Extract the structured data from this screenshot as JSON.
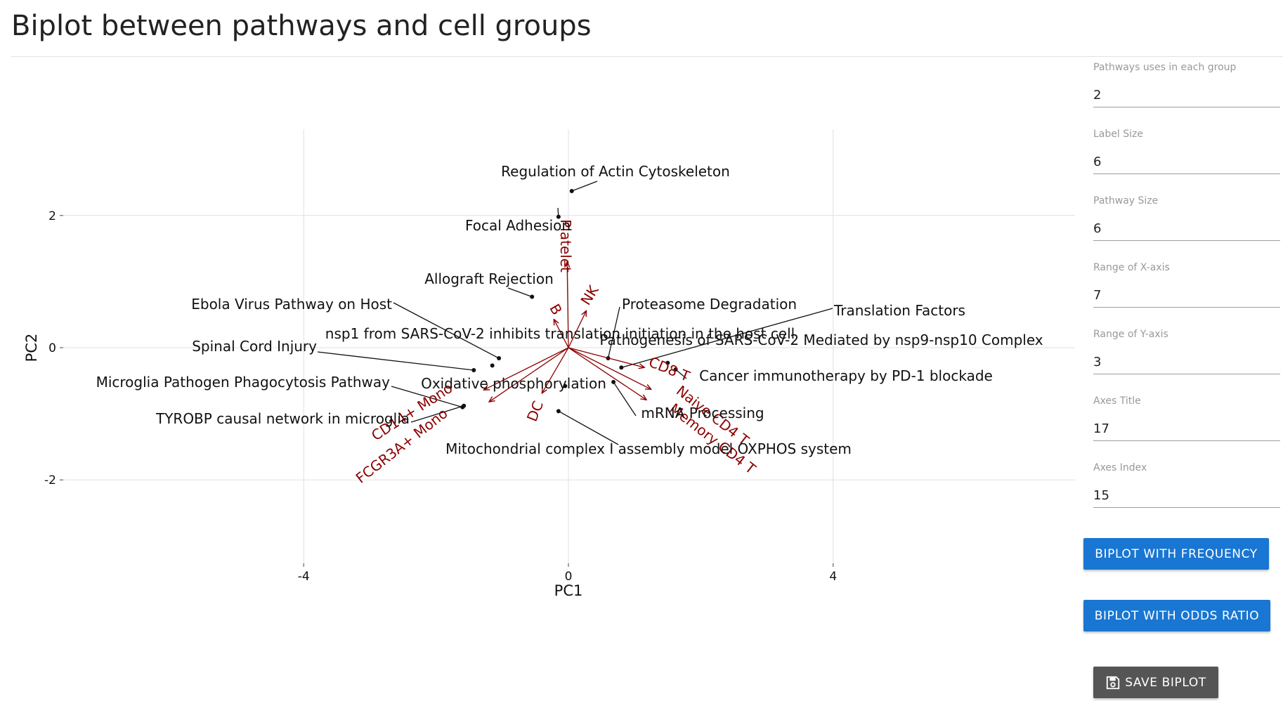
{
  "page": {
    "title": "Biplot between pathways and cell groups"
  },
  "sidebar": {
    "fields": [
      {
        "label": "Pathways uses in each group",
        "value": "2"
      },
      {
        "label": "Label Size",
        "value": "6"
      },
      {
        "label": "Pathway Size",
        "value": "6"
      },
      {
        "label": "Range of X-axis",
        "value": "7"
      },
      {
        "label": "Range of Y-axis",
        "value": "3"
      },
      {
        "label": "Axes Title",
        "value": "17"
      },
      {
        "label": "Axes Index",
        "value": "15"
      }
    ],
    "buttons": {
      "frequency": "BIPLOT WITH FREQUENCY",
      "odds_ratio": "BIPLOT WITH ODDS RATIO",
      "save": "SAVE BIPLOT"
    },
    "save_icon": "floppy-disk-icon"
  },
  "colors": {
    "arrow": "#8b0000",
    "primary_button": "#1976d2",
    "save_button": "#555555"
  },
  "chart_data": {
    "type": "scatter",
    "title": "",
    "xlabel": "PC1",
    "ylabel": "PC2",
    "xlim": [
      -7,
      7
    ],
    "ylim": [
      -3,
      3
    ],
    "xticks": [
      -4,
      0,
      4
    ],
    "yticks": [
      -2,
      0,
      2
    ],
    "grid": true,
    "points": [
      {
        "label": "Regulation of Actin Cytoskeleton",
        "x": 0.05,
        "y": 2.37
      },
      {
        "label": "Focal Adhesion",
        "x": -0.15,
        "y": 1.98
      },
      {
        "label": "Allograft Rejection",
        "x": -0.55,
        "y": 0.77
      },
      {
        "label": "Proteasome Degradation",
        "x": 0.6,
        "y": -0.16
      },
      {
        "label": "Translation Factors",
        "x": 0.8,
        "y": -0.3
      },
      {
        "label": "Ebola Virus Pathway on Host",
        "x": -1.05,
        "y": -0.16
      },
      {
        "label": "nsp1 from SARS-CoV-2 inhibits translation initiation in the host cell",
        "x": -1.15,
        "y": -0.27
      },
      {
        "label": "Pathogenesis of SARS-CoV-2 Mediated by nsp9-nsp10 Complex",
        "x": 1.5,
        "y": -0.23
      },
      {
        "label": "Spinal Cord Injury",
        "x": -1.43,
        "y": -0.34
      },
      {
        "label": "Cancer immunotherapy by PD-1 blockade",
        "x": 1.62,
        "y": -0.33
      },
      {
        "label": "Microglia Pathogen Phagocytosis Pathway",
        "x": -1.6,
        "y": -0.9
      },
      {
        "label": "Oxidative phosphorylation",
        "x": -0.05,
        "y": -0.58
      },
      {
        "label": "mRNA Processing",
        "x": 0.68,
        "y": -0.52
      },
      {
        "label": "TYROBP causal network in microglia",
        "x": -1.58,
        "y": -0.88
      },
      {
        "label": "Mitochondrial complex I assembly model OXPHOS system",
        "x": -0.15,
        "y": -0.96
      }
    ],
    "arrows": [
      {
        "label": "Platelet",
        "x": -0.02,
        "y": 1.3
      },
      {
        "label": "NK",
        "x": 0.27,
        "y": 0.56
      },
      {
        "label": "B",
        "x": -0.22,
        "y": 0.43
      },
      {
        "label": "CD8 T",
        "x": 1.15,
        "y": -0.3
      },
      {
        "label": "Naive CD4 T",
        "x": 1.25,
        "y": -0.63
      },
      {
        "label": "Memory CD4 T",
        "x": 1.18,
        "y": -0.79
      },
      {
        "label": "DC",
        "x": -0.4,
        "y": -0.69
      },
      {
        "label": "CD14+ Mono",
        "x": -1.28,
        "y": -0.64
      },
      {
        "label": "FCGR3A+ Mono",
        "x": -1.2,
        "y": -0.82
      }
    ]
  }
}
